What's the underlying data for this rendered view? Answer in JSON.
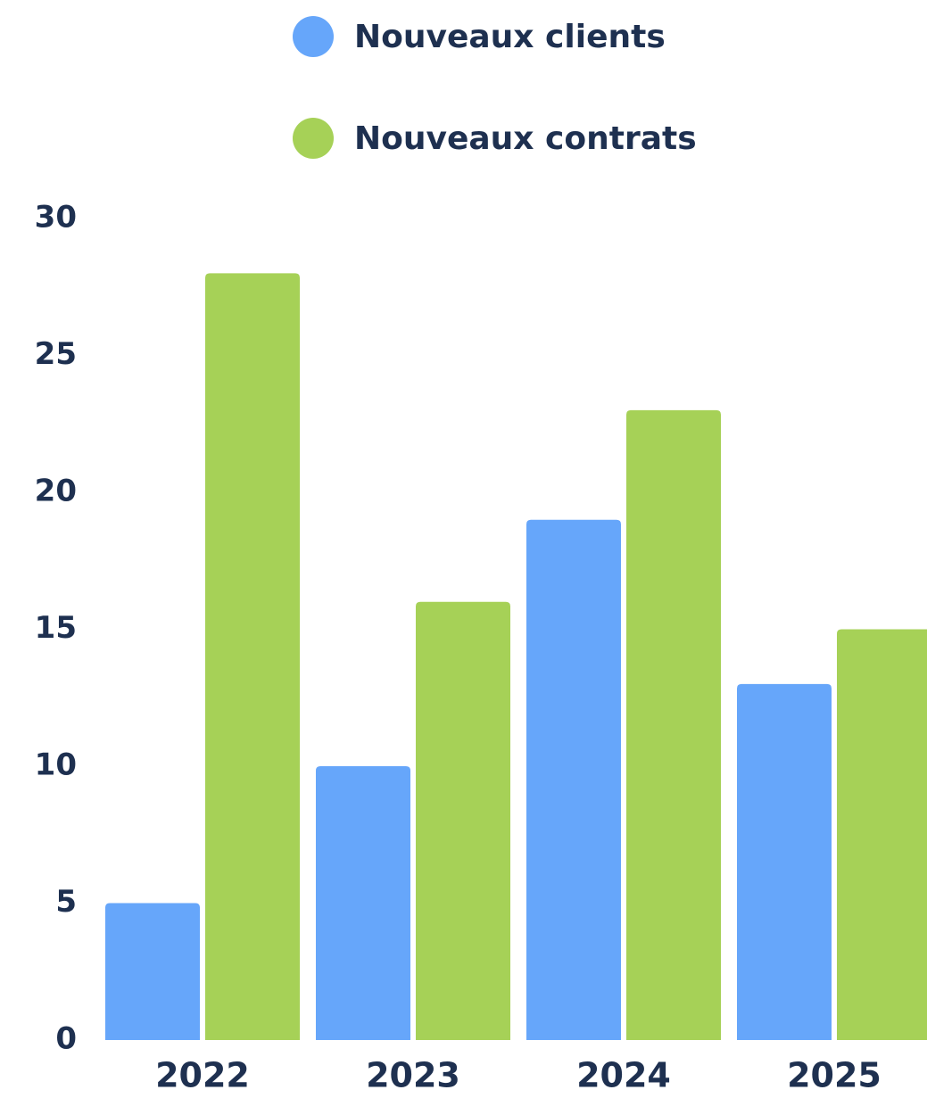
{
  "chart_data": {
    "type": "bar",
    "categories": [
      "2022",
      "2023",
      "2024",
      "2025"
    ],
    "series": [
      {
        "name": "Nouveaux clients",
        "color": "#66a6fa",
        "values": [
          5,
          10,
          19,
          13
        ]
      },
      {
        "name": "Nouveaux contrats",
        "color": "#a6d157",
        "values": [
          28,
          16,
          23,
          15
        ]
      }
    ],
    "ylim": [
      0,
      30
    ],
    "yticks": [
      0,
      5,
      10,
      15,
      20,
      25,
      30
    ],
    "grid": false
  }
}
